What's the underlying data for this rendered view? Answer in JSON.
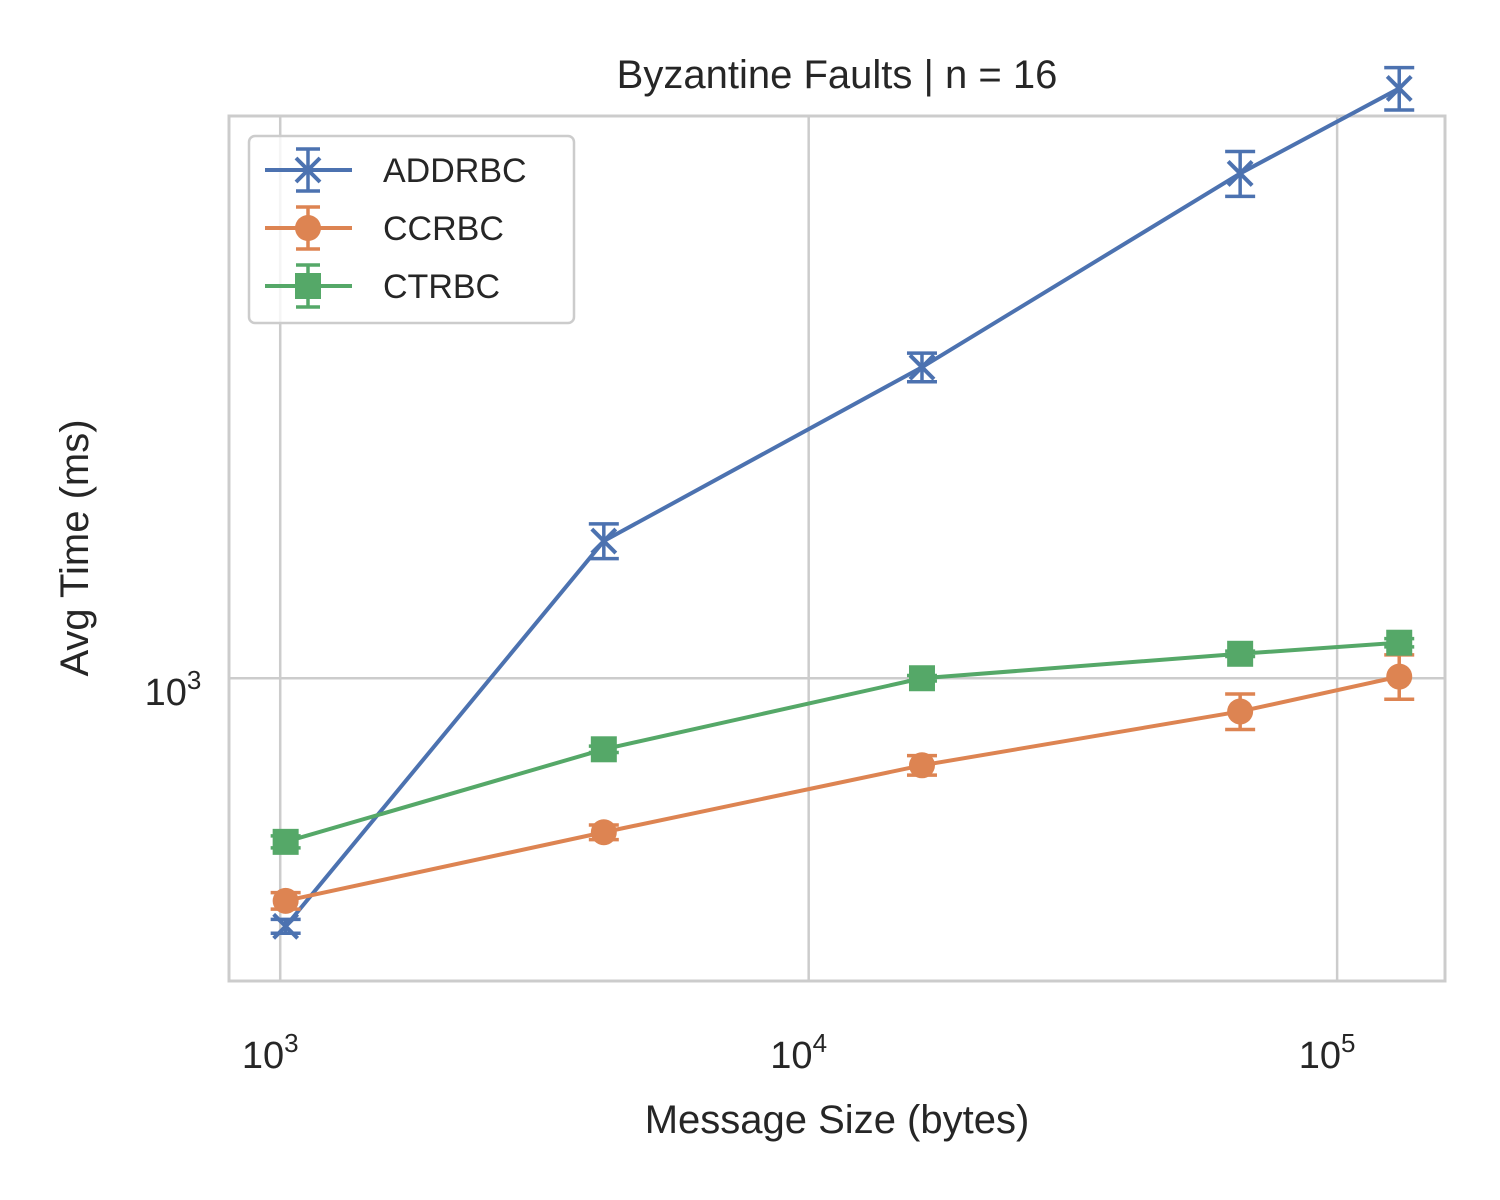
{
  "chart_data": {
    "type": "line",
    "title": "Byzantine Faults | n = 16",
    "xlabel": "Message Size (bytes)",
    "ylabel": "Avg Time (ms)",
    "xscale": "log",
    "yscale": "log",
    "xlim": [
      800,
      160000
    ],
    "ylim": [
      580,
      2750
    ],
    "grid": true,
    "legend_position": "top-left",
    "x_ticks": [
      {
        "value": 1000,
        "base": "10",
        "exp": "3"
      },
      {
        "value": 10000,
        "base": "10",
        "exp": "4"
      },
      {
        "value": 100000,
        "base": "10",
        "exp": "5"
      }
    ],
    "y_ticks": [
      {
        "value": 1000,
        "base": "10",
        "exp": "3"
      }
    ],
    "series": [
      {
        "name": "ADDRBC",
        "color": "#4c72b0",
        "marker": "x",
        "points": [
          {
            "x": 1024,
            "y": 640,
            "err": 8
          },
          {
            "x": 4096,
            "y": 1280,
            "err": 40
          },
          {
            "x": 16384,
            "y": 1750,
            "err": 45
          },
          {
            "x": 65536,
            "y": 2480,
            "err": 100
          },
          {
            "x": 131072,
            "y": 2890,
            "err": 110
          }
        ]
      },
      {
        "name": "CCRBC",
        "color": "#dd8452",
        "marker": "circle",
        "points": [
          {
            "x": 1024,
            "y": 670,
            "err": 10
          },
          {
            "x": 4096,
            "y": 758,
            "err": 10
          },
          {
            "x": 16384,
            "y": 855,
            "err": 15
          },
          {
            "x": 65536,
            "y": 942,
            "err": 30
          },
          {
            "x": 131072,
            "y": 1003,
            "err": 40
          }
        ]
      },
      {
        "name": "CTRBC",
        "color": "#55a868",
        "marker": "square",
        "points": [
          {
            "x": 1024,
            "y": 745,
            "err": 8
          },
          {
            "x": 4096,
            "y": 880,
            "err": 5
          },
          {
            "x": 16384,
            "y": 1000,
            "err": 5
          },
          {
            "x": 65536,
            "y": 1045,
            "err": 5
          },
          {
            "x": 131072,
            "y": 1066,
            "err": 8
          }
        ]
      }
    ]
  }
}
